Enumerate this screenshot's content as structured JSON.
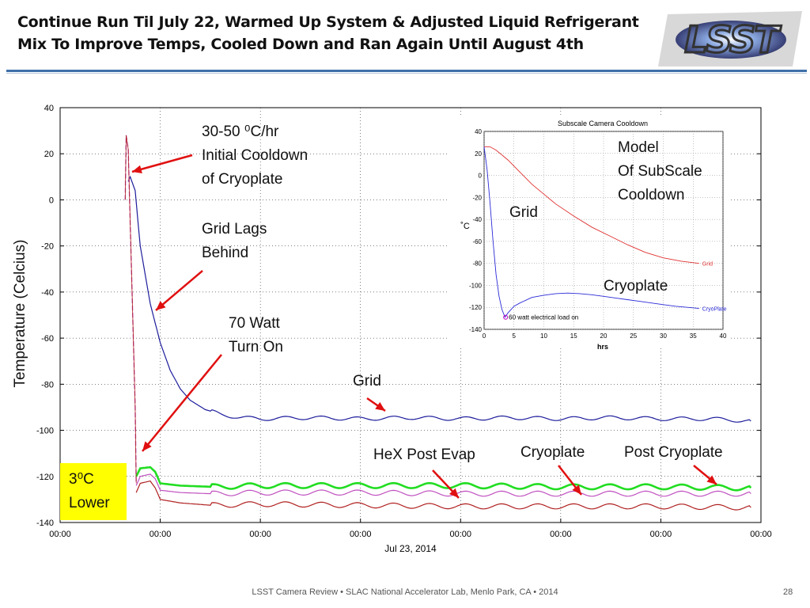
{
  "slide": {
    "title_line1": "Continue Run Til July 22, Warmed Up System & Adjusted Liquid Refrigerant",
    "title_line2": "Mix To Improve Temps, Cooled Down and Ran Again Until August 4th",
    "logo_text": "LSST",
    "footer": "LSST Camera Review • SLAC National Accelerator Lab, Menlo Park, CA • 2014",
    "page_number": "28"
  },
  "annotations": {
    "cooldown_rate": [
      "30-50 ⁰C/hr",
      "Initial Cooldown",
      "of Cryoplate"
    ],
    "grid_lags": [
      "Grid Lags",
      "Behind"
    ],
    "watt_on": [
      "70 Watt",
      "Turn On"
    ],
    "grid": "Grid",
    "hex": "HeX Post Evap",
    "cryoplate": "Cryoplate",
    "post_cryoplate": "Post Cryoplate",
    "lower_box": [
      "3⁰C",
      "Lower"
    ],
    "model_text": [
      "Model",
      "Of SubScale",
      "Cooldown"
    ],
    "inset_grid": "Grid",
    "inset_cryo": "Cryoplate"
  },
  "colors": {
    "grid_line": "#1c1c9c",
    "green": "#22dd22",
    "magenta": "#c050c0",
    "red": "#b02020",
    "arrow": "#e01010",
    "yellow_box": "#ffff00",
    "title_rule": "#3f6fa8"
  },
  "chart_data": [
    {
      "type": "line",
      "title": "",
      "ylabel": "Temperature (Celcius)",
      "xlabel": "Jul 23, 2014",
      "ylim": [
        -140,
        40
      ],
      "yticks": [
        40,
        20,
        0,
        -20,
        -40,
        -60,
        -80,
        -100,
        -120,
        -140
      ],
      "xlim": [
        0,
        7
      ],
      "xtick_labels": [
        "00:00",
        "00:00",
        "00:00",
        "00:00",
        "00:00",
        "00:00",
        "00:00",
        "00:00"
      ],
      "grid": true,
      "series": [
        {
          "name": "Grid",
          "x": [
            0.68,
            0.7,
            0.75,
            0.8,
            0.9,
            1.0,
            1.1,
            1.2,
            1.3,
            1.45,
            1.6,
            1.8,
            2.0,
            2.5,
            3.0,
            3.5,
            4.0,
            4.5,
            5.0,
            5.5,
            6.0,
            6.5,
            6.9
          ],
          "y": [
            8,
            10,
            4,
            -20,
            -45,
            -62,
            -74,
            -82,
            -87,
            -91,
            -93,
            -94.5,
            -95,
            -94.5,
            -95,
            -94.5,
            -95,
            -94.5,
            -95,
            -94.5,
            -95,
            -95,
            -96
          ]
        },
        {
          "name": "Post Cryoplate",
          "x": [
            0.76,
            0.8,
            0.9,
            0.95,
            1.0,
            1.2,
            1.5,
            2.0,
            3.0,
            4.0,
            5.0,
            6.0,
            6.9
          ],
          "y": [
            -120,
            -116.5,
            -116,
            -118,
            -123,
            -124,
            -124.5,
            -124,
            -124,
            -124,
            -124.5,
            -124.5,
            -125
          ]
        },
        {
          "name": "Cryoplate",
          "x": [
            0.76,
            0.8,
            0.9,
            0.95,
            1.0,
            1.2,
            1.5,
            2.0,
            3.0,
            4.0,
            5.0,
            6.0,
            6.9
          ],
          "y": [
            -124,
            -120,
            -119,
            -121,
            -126,
            -127,
            -127.5,
            -127,
            -127,
            -127.5,
            -127.5,
            -127.5,
            -127.5
          ]
        },
        {
          "name": "HeX Post Evap",
          "x": [
            0.76,
            0.8,
            0.9,
            0.95,
            1.0,
            1.2,
            1.5,
            2.0,
            3.0,
            4.0,
            5.0,
            6.0,
            6.9
          ],
          "y": [
            -127,
            -123,
            -122,
            -125,
            -130,
            -131.5,
            -132.5,
            -132,
            -132.5,
            -133,
            -133,
            -133,
            -133.5
          ]
        }
      ],
      "spike": {
        "x": [
          0.65,
          0.66,
          0.68,
          0.75,
          0.76
        ],
        "y": [
          0,
          28,
          22,
          -90,
          -123
        ]
      }
    },
    {
      "type": "line",
      "title": "Subscale Camera Cooldown",
      "xlabel": "hrs",
      "ylabel": "˚C",
      "xlim": [
        0,
        40
      ],
      "ylim": [
        -140,
        40
      ],
      "xticks": [
        0,
        5,
        10,
        15,
        20,
        25,
        30,
        35,
        40
      ],
      "yticks": [
        40,
        20,
        0,
        -20,
        -40,
        -60,
        -80,
        -100,
        -120,
        -140
      ],
      "grid": true,
      "series": [
        {
          "name": "Grid",
          "x": [
            0,
            1,
            2,
            4,
            6,
            8,
            10,
            12,
            15,
            18,
            21,
            24,
            27,
            30,
            33,
            36
          ],
          "y": [
            26,
            26,
            23,
            14,
            3,
            -8,
            -17,
            -26,
            -37,
            -47,
            -55,
            -63,
            -70,
            -75,
            -78,
            -80
          ]
        },
        {
          "name": "CryoPlate",
          "x": [
            0,
            0.5,
            1,
            1.5,
            2,
            2.5,
            3,
            3.5,
            4,
            5,
            6,
            8,
            10,
            12,
            14,
            16,
            18,
            20,
            22,
            24,
            26,
            28,
            30,
            32,
            34,
            36
          ],
          "y": [
            26,
            5,
            -25,
            -60,
            -90,
            -110,
            -122,
            -129,
            -125,
            -119,
            -116,
            -111,
            -109,
            -107.5,
            -107,
            -107.5,
            -108.5,
            -110,
            -111.5,
            -113,
            -114.5,
            -116,
            -117.5,
            -119,
            -120,
            -121
          ]
        }
      ],
      "marker": {
        "x": 3.6,
        "y": -129,
        "label": "60 watt electrical load on"
      }
    }
  ]
}
